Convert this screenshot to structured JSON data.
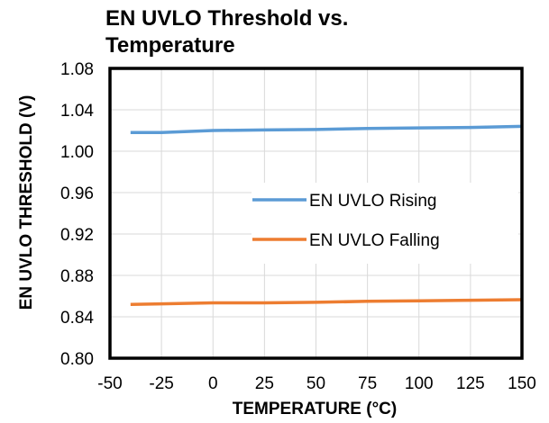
{
  "chart_data": {
    "type": "line",
    "title_lines": [
      "EN UVLO Threshold vs.",
      "Temperature"
    ],
    "xlabel": "TEMPERATURE (°C)",
    "ylabel": "EN UVLO THRESHOLD (V)",
    "xlim": [
      -50,
      150
    ],
    "ylim": [
      0.8,
      1.08
    ],
    "x_ticks": [
      -50,
      -25,
      0,
      25,
      50,
      75,
      100,
      125,
      150
    ],
    "y_ticks": [
      "0.80",
      "0.84",
      "0.88",
      "0.92",
      "0.96",
      "1.00",
      "1.04",
      "1.08"
    ],
    "grid": true,
    "legend_position": "center-right",
    "series": [
      {
        "name": "EN UVLO Rising",
        "color": "#5b9bd5",
        "x": [
          -40,
          -25,
          0,
          25,
          50,
          75,
          100,
          125,
          150
        ],
        "y": [
          1.018,
          1.018,
          1.02,
          1.0205,
          1.021,
          1.022,
          1.0225,
          1.023,
          1.024
        ]
      },
      {
        "name": "EN UVLO Falling",
        "color": "#ed7d31",
        "x": [
          -40,
          -25,
          0,
          25,
          50,
          75,
          100,
          125,
          150
        ],
        "y": [
          0.852,
          0.8525,
          0.8535,
          0.8535,
          0.854,
          0.855,
          0.8555,
          0.856,
          0.8565
        ]
      }
    ]
  }
}
